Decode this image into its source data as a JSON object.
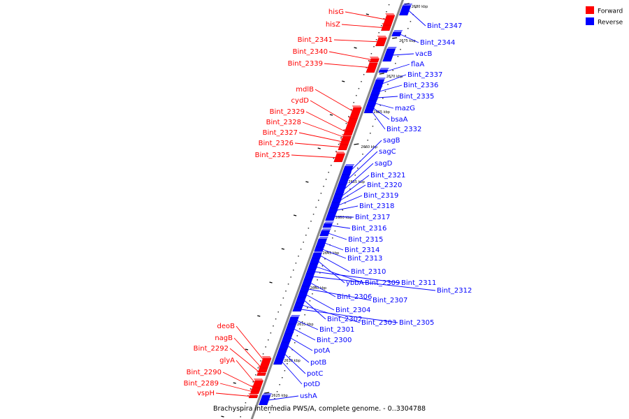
{
  "caption": "Brachyspira intermedia PWS/A, complete genome. - 0..3304788",
  "legend": [
    {
      "label": "Forward",
      "color": "#ff0000"
    },
    {
      "label": "Reverse",
      "color": "#0000ff"
    }
  ],
  "colors": {
    "forward": "#ff0000",
    "reverse": "#0000ff",
    "axis": "#888888"
  },
  "ticks": [
    "2625 kbp",
    "2630 kbp",
    "2635 kbp",
    "2640 kbp",
    "2645 kbp",
    "2650 kbp",
    "2655 kbp",
    "2660 kbp",
    "2665 kbp",
    "2670 kbp",
    "2675 kbp",
    "2680 kbp"
  ],
  "forward_genes": [
    "hisG",
    "hisZ",
    "Bint_2341",
    "Bint_2340",
    "Bint_2339",
    "mdlB",
    "cydD",
    "Bint_2329",
    "Bint_2328",
    "Bint_2327",
    "Bint_2326",
    "Bint_2325",
    "deoB",
    "nagB",
    "Bint_2292",
    "glyA",
    "Bint_2290",
    "Bint_2289",
    "vspH"
  ],
  "reverse_genes": [
    "Bint_2347",
    "Bint_2344",
    "vacB",
    "flaA",
    "Bint_2337",
    "Bint_2336",
    "Bint_2335",
    "mazG",
    "bsaA",
    "Bint_2332",
    "sagB",
    "sagC",
    "sagD",
    "Bint_2321",
    "Bint_2320",
    "Bint_2319",
    "Bint_2318",
    "Bint_2317",
    "Bint_2316",
    "Bint_2315",
    "Bint_2314",
    "Bint_2313",
    "Bint_2310",
    "ybbA",
    "Bint_2309",
    "Bint_2311",
    "Bint_2312",
    "Bint_2306",
    "Bint_2307",
    "Bint_2304",
    "Bint_2302",
    "Bint_2303",
    "Bint_2305",
    "Bint_2301",
    "Bint_2300",
    "potA",
    "potB",
    "potC",
    "potD",
    "ushA"
  ]
}
